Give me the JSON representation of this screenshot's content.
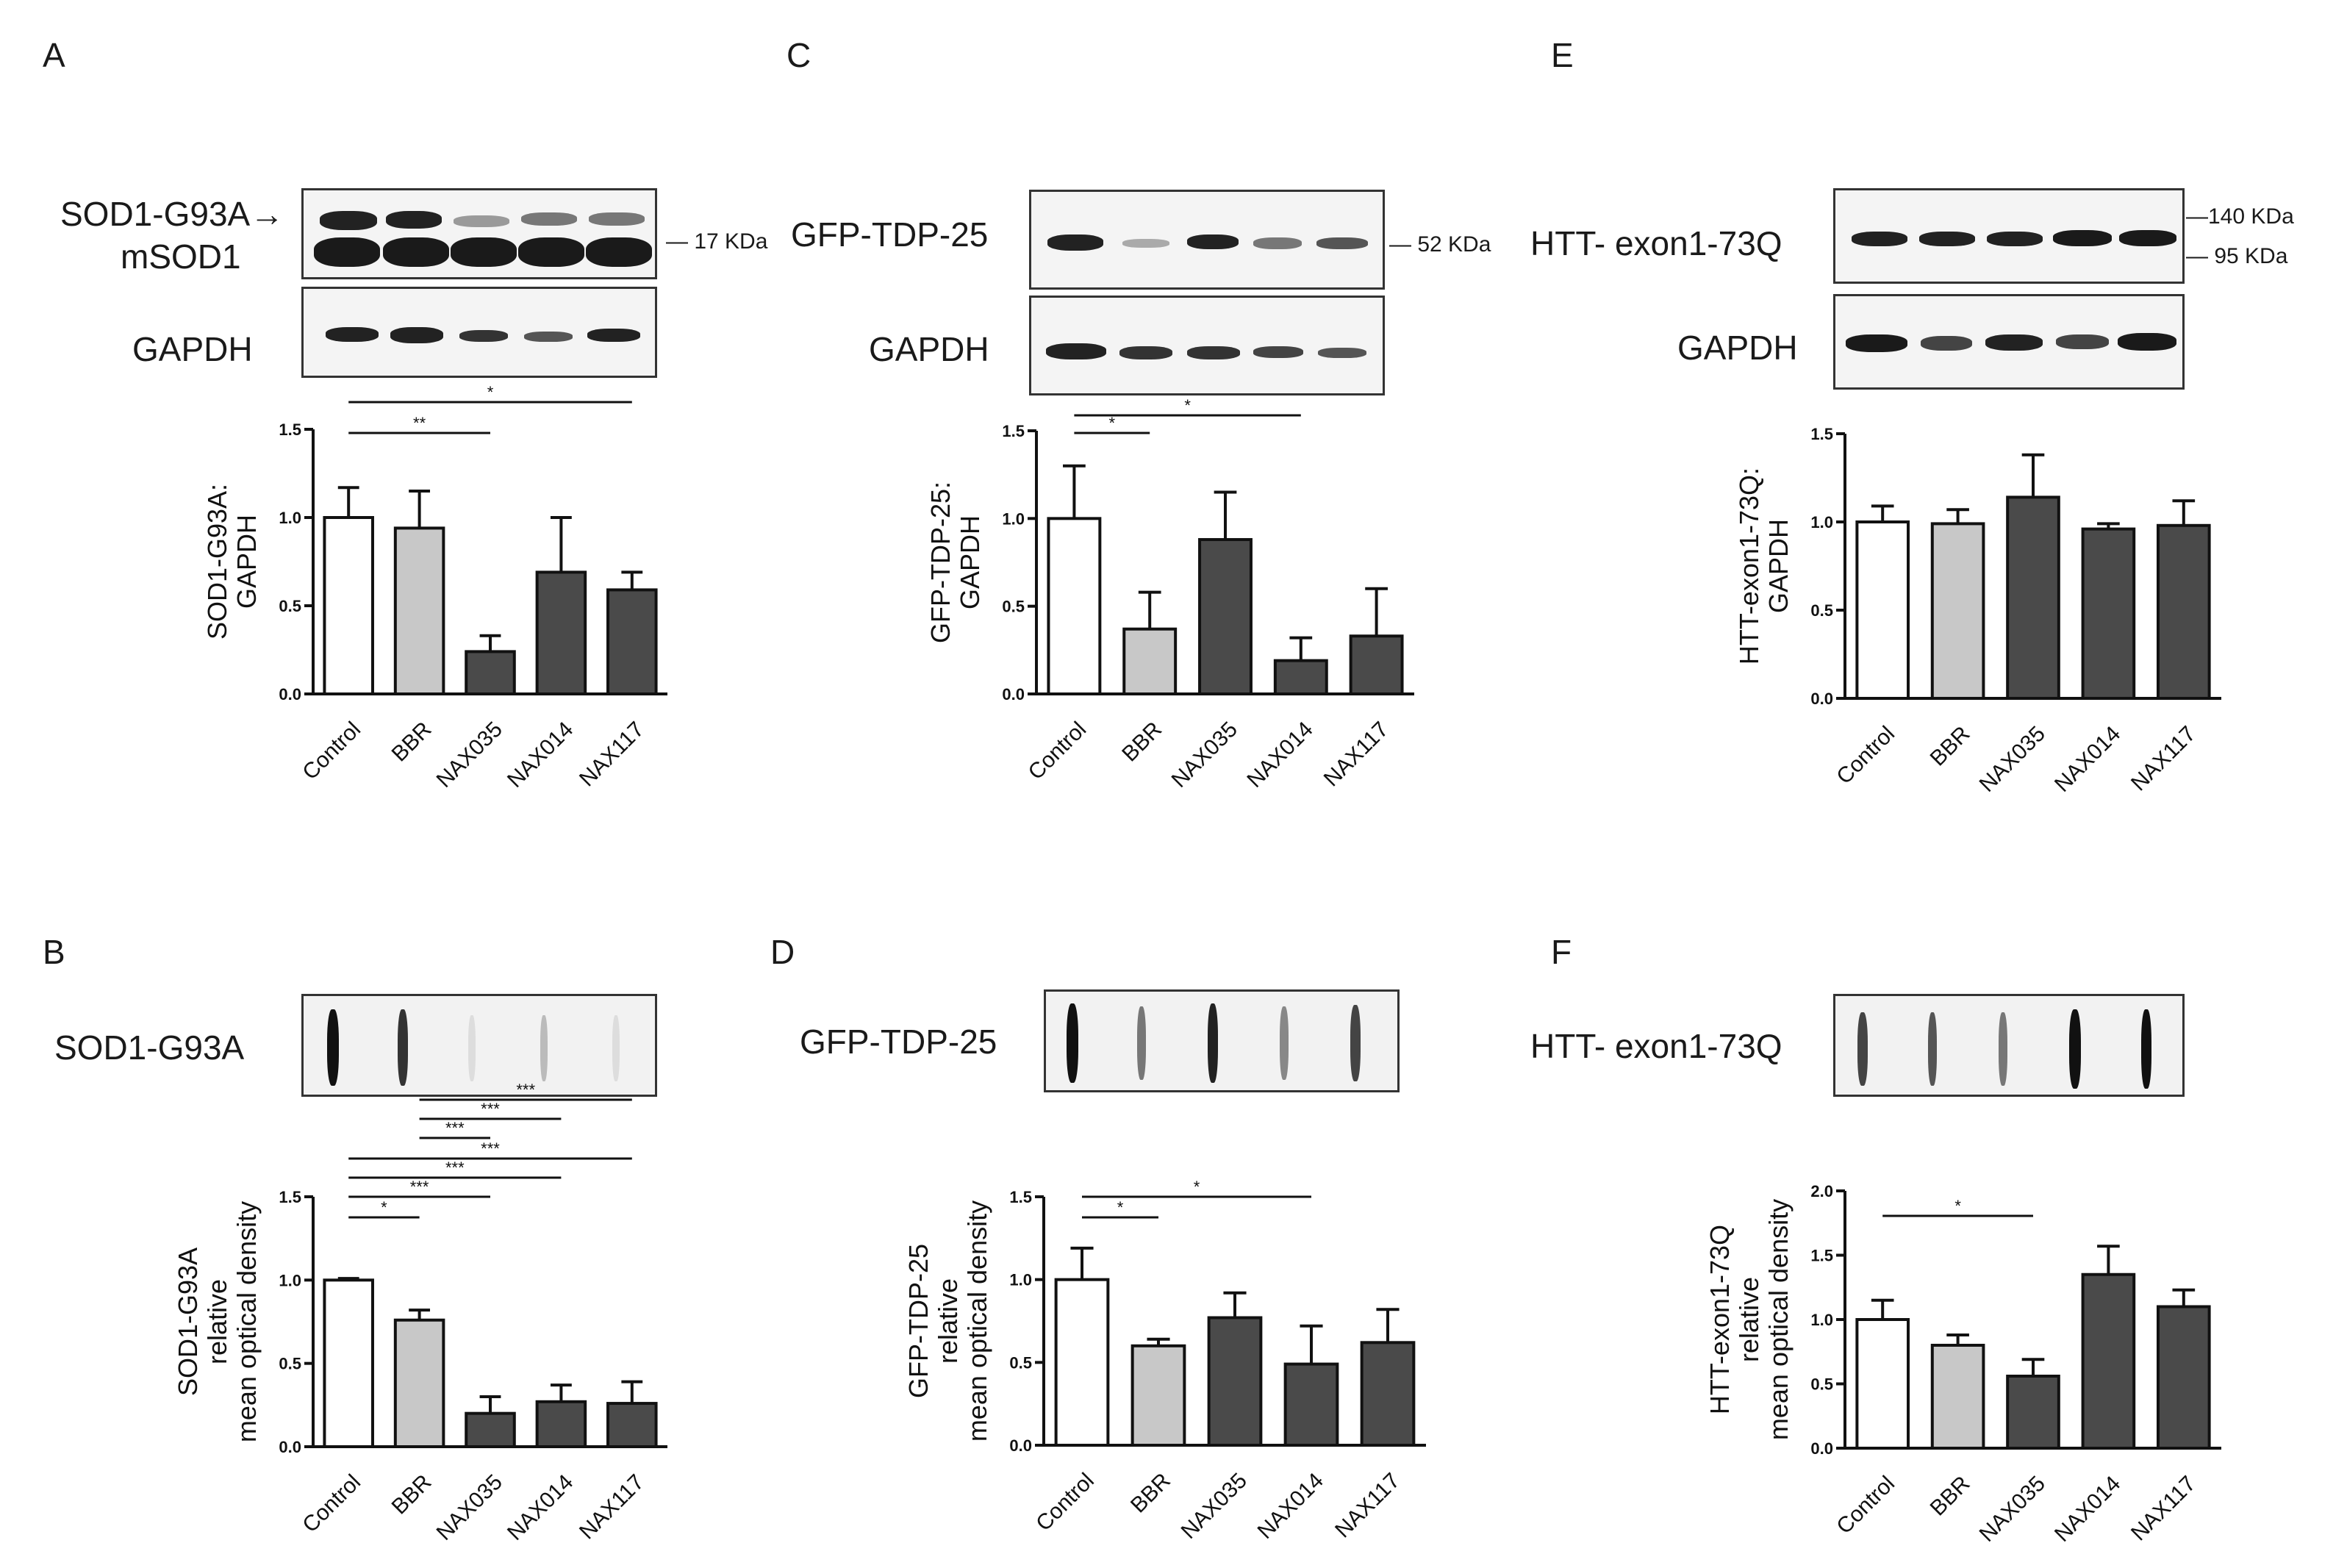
{
  "panels": [
    {
      "letter": "A",
      "labels": [
        "SOD1-G93A→",
        "mSOD1",
        "GAPDH"
      ],
      "markers": [
        "17 KDa"
      ],
      "chart_data": {
        "type": "bar",
        "categories": [
          "Control",
          "BBR",
          "NAX035",
          "NAX014",
          "NAX117"
        ],
        "values": [
          1.0,
          0.94,
          0.24,
          0.69,
          0.59
        ],
        "errors": [
          0.17,
          0.21,
          0.09,
          0.31,
          0.1
        ],
        "bar_colors": [
          "#ffffff",
          "#c8c8c8",
          "#4a4a4a",
          "#4a4a4a",
          "#4a4a4a"
        ],
        "ylabel": [
          "SOD1-G93A:",
          "GAPDH"
        ],
        "ylim": [
          0,
          1.5
        ],
        "yticks": [
          "0.0",
          "0.5",
          "1.0",
          "1.5"
        ],
        "significance": [
          {
            "from": "Control",
            "to": "NAX035",
            "label": "**"
          },
          {
            "from": "Control",
            "to": "NAX117",
            "label": "*"
          }
        ]
      }
    },
    {
      "letter": "B",
      "labels": [
        "SOD1-G93A"
      ],
      "markers": [],
      "chart_data": {
        "type": "bar",
        "categories": [
          "Control",
          "BBR",
          "NAX035",
          "NAX014",
          "NAX117"
        ],
        "values": [
          1.0,
          0.76,
          0.2,
          0.27,
          0.26
        ],
        "errors": [
          0.01,
          0.06,
          0.1,
          0.1,
          0.13
        ],
        "bar_colors": [
          "#ffffff",
          "#c8c8c8",
          "#4a4a4a",
          "#4a4a4a",
          "#4a4a4a"
        ],
        "ylabel": [
          "SOD1-G93A",
          "relative",
          "mean optical density"
        ],
        "ylim": [
          0,
          1.5
        ],
        "yticks": [
          "0.0",
          "0.5",
          "1.0",
          "1.5"
        ],
        "significance": [
          {
            "from": "Control",
            "to": "BBR",
            "label": "*"
          },
          {
            "from": "Control",
            "to": "NAX035",
            "label": "***"
          },
          {
            "from": "Control",
            "to": "NAX014",
            "label": "***"
          },
          {
            "from": "Control",
            "to": "NAX117",
            "label": "***"
          },
          {
            "from": "BBR",
            "to": "NAX035",
            "label": "***"
          },
          {
            "from": "BBR",
            "to": "NAX014",
            "label": "***"
          },
          {
            "from": "BBR",
            "to": "NAX117",
            "label": "***"
          }
        ]
      }
    },
    {
      "letter": "C",
      "labels": [
        "GFP-TDP-25",
        "GAPDH"
      ],
      "markers": [
        "52 KDa"
      ],
      "chart_data": {
        "type": "bar",
        "categories": [
          "Control",
          "BBR",
          "NAX035",
          "NAX014",
          "NAX117"
        ],
        "values": [
          1.0,
          0.37,
          0.88,
          0.19,
          0.33
        ],
        "errors": [
          0.3,
          0.21,
          0.27,
          0.13,
          0.27
        ],
        "bar_colors": [
          "#ffffff",
          "#c8c8c8",
          "#4a4a4a",
          "#4a4a4a",
          "#4a4a4a"
        ],
        "ylabel": [
          "GFP-TDP-25:",
          "GAPDH"
        ],
        "ylim": [
          0,
          1.5
        ],
        "yticks": [
          "0.0",
          "0.5",
          "1.0",
          "1.5"
        ],
        "significance": [
          {
            "from": "Control",
            "to": "BBR",
            "label": "*"
          },
          {
            "from": "Control",
            "to": "NAX014",
            "label": "*"
          }
        ]
      }
    },
    {
      "letter": "D",
      "labels": [
        "GFP-TDP-25"
      ],
      "markers": [],
      "chart_data": {
        "type": "bar",
        "categories": [
          "Control",
          "BBR",
          "NAX035",
          "NAX014",
          "NAX117"
        ],
        "values": [
          1.0,
          0.6,
          0.77,
          0.49,
          0.62
        ],
        "errors": [
          0.19,
          0.04,
          0.15,
          0.23,
          0.2
        ],
        "bar_colors": [
          "#ffffff",
          "#c8c8c8",
          "#4a4a4a",
          "#4a4a4a",
          "#4a4a4a"
        ],
        "ylabel": [
          "GFP-TDP-25",
          "relative",
          "mean optical density"
        ],
        "ylim": [
          0,
          1.5
        ],
        "yticks": [
          "0.0",
          "0.5",
          "1.0",
          "1.5"
        ],
        "significance": [
          {
            "from": "Control",
            "to": "BBR",
            "label": "*"
          },
          {
            "from": "Control",
            "to": "NAX014",
            "label": "*"
          }
        ]
      }
    },
    {
      "letter": "E",
      "labels": [
        "HTT- exon1-73Q",
        "GAPDH"
      ],
      "markers": [
        "140 KDa",
        "95 KDa"
      ],
      "chart_data": {
        "type": "bar",
        "categories": [
          "Control",
          "BBR",
          "NAX035",
          "NAX014",
          "NAX117"
        ],
        "values": [
          1.0,
          0.99,
          1.14,
          0.96,
          0.98
        ],
        "errors": [
          0.09,
          0.08,
          0.24,
          0.03,
          0.14
        ],
        "bar_colors": [
          "#ffffff",
          "#c8c8c8",
          "#4a4a4a",
          "#4a4a4a",
          "#4a4a4a"
        ],
        "ylabel": [
          "HTT-exon1-73Q:",
          "GAPDH"
        ],
        "ylim": [
          0,
          1.5
        ],
        "yticks": [
          "0.0",
          "0.5",
          "1.0",
          "1.5"
        ],
        "significance": []
      }
    },
    {
      "letter": "F",
      "labels": [
        "HTT- exon1-73Q"
      ],
      "markers": [],
      "chart_data": {
        "type": "bar",
        "categories": [
          "Control",
          "BBR",
          "NAX035",
          "NAX014",
          "NAX117"
        ],
        "values": [
          1.0,
          0.8,
          0.56,
          1.35,
          1.1
        ],
        "errors": [
          0.15,
          0.08,
          0.13,
          0.22,
          0.13
        ],
        "bar_colors": [
          "#ffffff",
          "#c8c8c8",
          "#4a4a4a",
          "#4a4a4a",
          "#4a4a4a"
        ],
        "ylabel": [
          "HTT-exon1-73Q",
          "relative",
          "mean optical density"
        ],
        "ylim": [
          0,
          2.0
        ],
        "yticks": [
          "0.0",
          "0.5",
          "1.0",
          "1.5",
          "2.0"
        ],
        "significance": [
          {
            "from": "Control",
            "to": "NAX035",
            "label": "*"
          }
        ]
      }
    }
  ]
}
